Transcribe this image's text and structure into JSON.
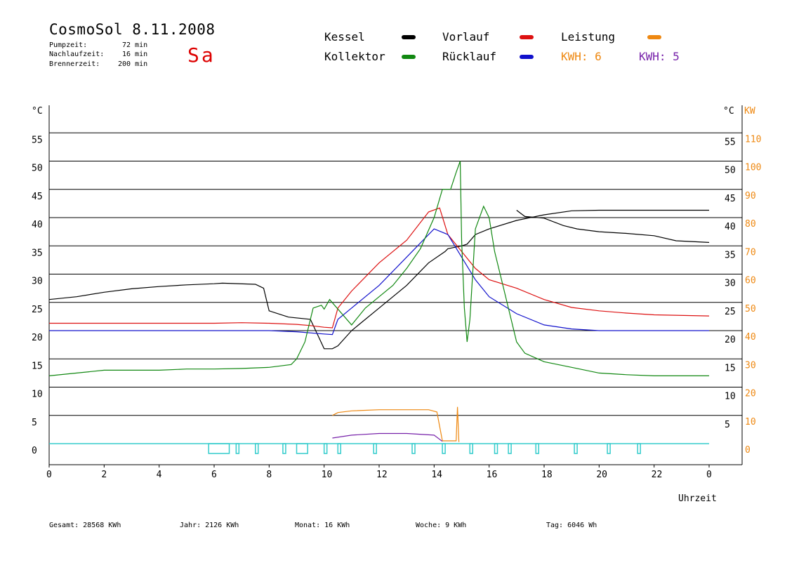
{
  "header": {
    "title": "CosmoSol 8.11.2008",
    "pump_label": "Pumpzeit:",
    "pump_value": "72 min",
    "nachlauf_label": "Nachlaufzeit:",
    "nachlauf_value": "16 min",
    "brenner_label": "Brennerzeit:",
    "brenner_value": "200 min",
    "weekday": "Sa"
  },
  "legend": {
    "kessel": "Kessel",
    "kollektor": "Kollektor",
    "vorlauf": "Vorlauf",
    "ruecklauf": "Rücklauf",
    "leistung": "Leistung",
    "kwh1": "KWH: 6",
    "kwh2": "KWH: 5",
    "colors": {
      "kessel": "#000000",
      "kollektor": "#118811",
      "vorlauf": "#dd1111",
      "ruecklauf": "#1111cc",
      "leistung": "#ee8811",
      "kwh2": "#7722aa",
      "status": "#33cccc"
    }
  },
  "footer": {
    "gesamt": "Gesamt:  28568 KWh",
    "jahr": "Jahr:  2126 KWh",
    "monat": "Monat:    16 KWh",
    "woche": "Woche:     9 KWh",
    "tag": "Tag:   6046 Wh"
  },
  "chart_data": {
    "type": "line",
    "xlabel": "Uhrzeit",
    "ylabel_left": "°C",
    "ylabel_right_1": "°C",
    "ylabel_right_2": "KW",
    "xlim": [
      0,
      24
    ],
    "ylim_left": [
      0,
      55
    ],
    "ylim_right_kw": [
      0,
      110
    ],
    "x_ticks": [
      "0",
      "2",
      "4",
      "6",
      "8",
      "10",
      "12",
      "14",
      "16",
      "18",
      "20",
      "22",
      "0"
    ],
    "y_ticks_left": [
      "0",
      "5",
      "10",
      "15",
      "20",
      "25",
      "30",
      "35",
      "40",
      "45",
      "50",
      "55"
    ],
    "y_ticks_right": [
      "5",
      "10",
      "15",
      "20",
      "25",
      "30",
      "35",
      "40",
      "45",
      "50",
      "55"
    ],
    "kw_ticks": [
      "0",
      "10",
      "20",
      "30",
      "40",
      "50",
      "60",
      "70",
      "80",
      "90",
      "100",
      "110"
    ],
    "grid": "horizontal",
    "series": [
      {
        "name": "Kessel",
        "points": [
          [
            0,
            25.5
          ],
          [
            1,
            26
          ],
          [
            2,
            26.8
          ],
          [
            3,
            27.4
          ],
          [
            4,
            27.8
          ],
          [
            5,
            28.1
          ],
          [
            6,
            28.3
          ],
          [
            6.3,
            28.4
          ],
          [
            7.5,
            28.2
          ],
          [
            7.8,
            27.5
          ],
          [
            8,
            23.5
          ],
          [
            8.7,
            22.4
          ],
          [
            9.5,
            22
          ],
          [
            10,
            16.8
          ],
          [
            10.3,
            16.8
          ],
          [
            10.5,
            17.3
          ],
          [
            11,
            20
          ],
          [
            12,
            24
          ],
          [
            13,
            28
          ],
          [
            13.8,
            32
          ],
          [
            14.4,
            34
          ],
          [
            14.5,
            34.5
          ],
          [
            15,
            35
          ],
          [
            15.2,
            35.3
          ],
          [
            15.5,
            37
          ],
          [
            16,
            38
          ],
          [
            17,
            39.5
          ],
          [
            18,
            40.5
          ],
          [
            19,
            41.2
          ],
          [
            20,
            41.3
          ],
          [
            21,
            41.3
          ],
          [
            24,
            41.3
          ]
        ]
      },
      {
        "name": "Kessel (Abend)",
        "points": [
          [
            17,
            41.3
          ],
          [
            17.3,
            40.2
          ],
          [
            18,
            39.9
          ],
          [
            18.7,
            38.6
          ],
          [
            19.2,
            38
          ],
          [
            20,
            37.5
          ],
          [
            21,
            37.2
          ],
          [
            22,
            36.8
          ],
          [
            22.8,
            35.9
          ],
          [
            24,
            35.6
          ]
        ]
      },
      {
        "name": "Vorlauf",
        "points": [
          [
            0,
            21.3
          ],
          [
            2,
            21.3
          ],
          [
            4,
            21.3
          ],
          [
            6,
            21.3
          ],
          [
            7,
            21.4
          ],
          [
            8,
            21.3
          ],
          [
            9,
            21.1
          ],
          [
            9.5,
            20.9
          ],
          [
            10,
            20.6
          ],
          [
            10.3,
            20.5
          ],
          [
            10.5,
            24
          ],
          [
            11,
            27
          ],
          [
            12,
            32
          ],
          [
            13,
            36
          ],
          [
            13.8,
            41
          ],
          [
            14.2,
            41.7
          ],
          [
            14.5,
            37
          ],
          [
            15,
            34
          ],
          [
            15.5,
            31
          ],
          [
            16,
            29
          ],
          [
            17,
            27.5
          ],
          [
            18,
            25.5
          ],
          [
            19,
            24.1
          ],
          [
            20,
            23.5
          ],
          [
            21,
            23.1
          ],
          [
            22,
            22.8
          ],
          [
            24,
            22.6
          ]
        ]
      },
      {
        "name": "Rücklauf",
        "points": [
          [
            0,
            20
          ],
          [
            2,
            20
          ],
          [
            4,
            20
          ],
          [
            6,
            20
          ],
          [
            8,
            20
          ],
          [
            9,
            19.8
          ],
          [
            10,
            19.4
          ],
          [
            10.3,
            19.3
          ],
          [
            10.5,
            22
          ],
          [
            11,
            24
          ],
          [
            12,
            28
          ],
          [
            13,
            33
          ],
          [
            14,
            38
          ],
          [
            14.5,
            37
          ],
          [
            15,
            33
          ],
          [
            15.5,
            29
          ],
          [
            16,
            26
          ],
          [
            17,
            23
          ],
          [
            18,
            21
          ],
          [
            19,
            20.3
          ],
          [
            20,
            20
          ],
          [
            22,
            20
          ],
          [
            24,
            20
          ]
        ]
      },
      {
        "name": "Kollektor",
        "points": [
          [
            0,
            12
          ],
          [
            1,
            12.5
          ],
          [
            2,
            13
          ],
          [
            3,
            13
          ],
          [
            4,
            13
          ],
          [
            5,
            13.2
          ],
          [
            6,
            13.2
          ],
          [
            7,
            13.3
          ],
          [
            8,
            13.5
          ],
          [
            8.8,
            14
          ],
          [
            9,
            15
          ],
          [
            9.3,
            18
          ],
          [
            9.6,
            24
          ],
          [
            9.9,
            24.5
          ],
          [
            10,
            23.8
          ],
          [
            10.2,
            25.5
          ],
          [
            11,
            21
          ],
          [
            11.5,
            24
          ],
          [
            12,
            26
          ],
          [
            12.5,
            28
          ],
          [
            13,
            31
          ],
          [
            13.5,
            34.5
          ],
          [
            14,
            40
          ],
          [
            14.3,
            45
          ],
          [
            14.6,
            45
          ],
          [
            14.8,
            48
          ],
          [
            14.95,
            50
          ],
          [
            15,
            36
          ],
          [
            15.1,
            24
          ],
          [
            15.2,
            18
          ],
          [
            15.3,
            22
          ],
          [
            15.5,
            38
          ],
          [
            15.8,
            42
          ],
          [
            16,
            40
          ],
          [
            16.2,
            34
          ],
          [
            16.5,
            28
          ],
          [
            16.8,
            22
          ],
          [
            17,
            18
          ],
          [
            17.3,
            16
          ],
          [
            18,
            14.5
          ],
          [
            19,
            13.5
          ],
          [
            20,
            12.5
          ],
          [
            21,
            12.2
          ],
          [
            22,
            12
          ],
          [
            23,
            12
          ],
          [
            24,
            12
          ]
        ]
      },
      {
        "name": "Leistung",
        "points": [
          [
            10.3,
            5
          ],
          [
            10.5,
            5.5
          ],
          [
            11,
            5.8
          ],
          [
            12,
            6
          ],
          [
            13,
            6
          ],
          [
            13.8,
            6
          ],
          [
            14.1,
            5.6
          ],
          [
            14.3,
            0.5
          ],
          [
            14.8,
            0.5
          ],
          [
            14.85,
            6.5
          ],
          [
            14.9,
            0.3
          ]
        ]
      },
      {
        "name": "KWH 5",
        "points": [
          [
            10.3,
            1
          ],
          [
            11,
            1.5
          ],
          [
            12,
            1.8
          ],
          [
            13,
            1.8
          ],
          [
            14,
            1.5
          ],
          [
            14.3,
            0.4
          ]
        ]
      }
    ],
    "pump_status": [
      {
        "from": 5.8,
        "to": 6.55
      },
      {
        "from": 6.8,
        "to": 6.9
      },
      {
        "from": 7.5,
        "to": 7.6
      },
      {
        "from": 8.5,
        "to": 8.6
      },
      {
        "from": 9.0,
        "to": 9.4
      },
      {
        "from": 10.0,
        "to": 10.1
      },
      {
        "from": 10.5,
        "to": 10.6
      },
      {
        "from": 11.8,
        "to": 11.9
      },
      {
        "from": 13.2,
        "to": 13.3
      },
      {
        "from": 14.3,
        "to": 14.4
      },
      {
        "from": 15.3,
        "to": 15.4
      },
      {
        "from": 16.2,
        "to": 16.3
      },
      {
        "from": 16.7,
        "to": 16.8
      },
      {
        "from": 17.7,
        "to": 17.8
      },
      {
        "from": 19.1,
        "to": 19.2
      },
      {
        "from": 20.3,
        "to": 20.4
      },
      {
        "from": 21.4,
        "to": 21.5
      }
    ]
  }
}
